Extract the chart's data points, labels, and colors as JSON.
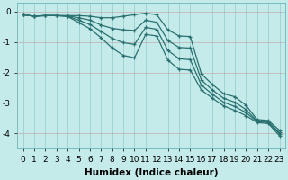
{
  "xlabel": "Humidex (Indice chaleur)",
  "bg_color": "#c5eaea",
  "grid_color": "#5aadad",
  "line_color": "#2a7070",
  "x_data": [
    0,
    1,
    2,
    3,
    4,
    5,
    6,
    7,
    8,
    9,
    10,
    11,
    12,
    13,
    14,
    15,
    16,
    17,
    18,
    19,
    20,
    21,
    22,
    23
  ],
  "series": [
    [
      -0.1,
      -0.15,
      -0.13,
      -0.13,
      -0.13,
      -0.13,
      -0.15,
      -0.2,
      -0.2,
      -0.15,
      -0.1,
      -0.05,
      -0.1,
      -0.6,
      -0.8,
      -0.82,
      -2.05,
      -2.4,
      -2.7,
      -2.8,
      -3.08,
      -3.55,
      -3.58,
      -3.9
    ],
    [
      -0.1,
      -0.15,
      -0.13,
      -0.13,
      -0.14,
      -0.2,
      -0.28,
      -0.44,
      -0.55,
      -0.6,
      -0.62,
      -0.28,
      -0.35,
      -0.95,
      -1.18,
      -1.2,
      -2.25,
      -2.58,
      -2.85,
      -2.98,
      -3.22,
      -3.6,
      -3.62,
      -3.98
    ],
    [
      -0.1,
      -0.15,
      -0.13,
      -0.13,
      -0.15,
      -0.28,
      -0.42,
      -0.65,
      -0.88,
      -1.02,
      -1.08,
      -0.52,
      -0.58,
      -1.28,
      -1.55,
      -1.58,
      -2.42,
      -2.72,
      -2.98,
      -3.12,
      -3.32,
      -3.62,
      -3.65,
      -4.02
    ],
    [
      -0.1,
      -0.15,
      -0.13,
      -0.13,
      -0.16,
      -0.36,
      -0.56,
      -0.86,
      -1.2,
      -1.44,
      -1.52,
      -0.75,
      -0.8,
      -1.6,
      -1.9,
      -1.92,
      -2.58,
      -2.85,
      -3.1,
      -3.25,
      -3.42,
      -3.65,
      -3.68,
      -4.08
    ]
  ],
  "ylim": [
    -4.5,
    0.3
  ],
  "xlim": [
    -0.5,
    23.5
  ],
  "yticks": [
    0,
    -1,
    -2,
    -3,
    -4
  ],
  "xticks": [
    0,
    1,
    2,
    3,
    4,
    5,
    6,
    7,
    8,
    9,
    10,
    11,
    12,
    13,
    14,
    15,
    16,
    17,
    18,
    19,
    20,
    21,
    22,
    23
  ],
  "tick_fontsize": 6.5,
  "label_fontsize": 7.5
}
